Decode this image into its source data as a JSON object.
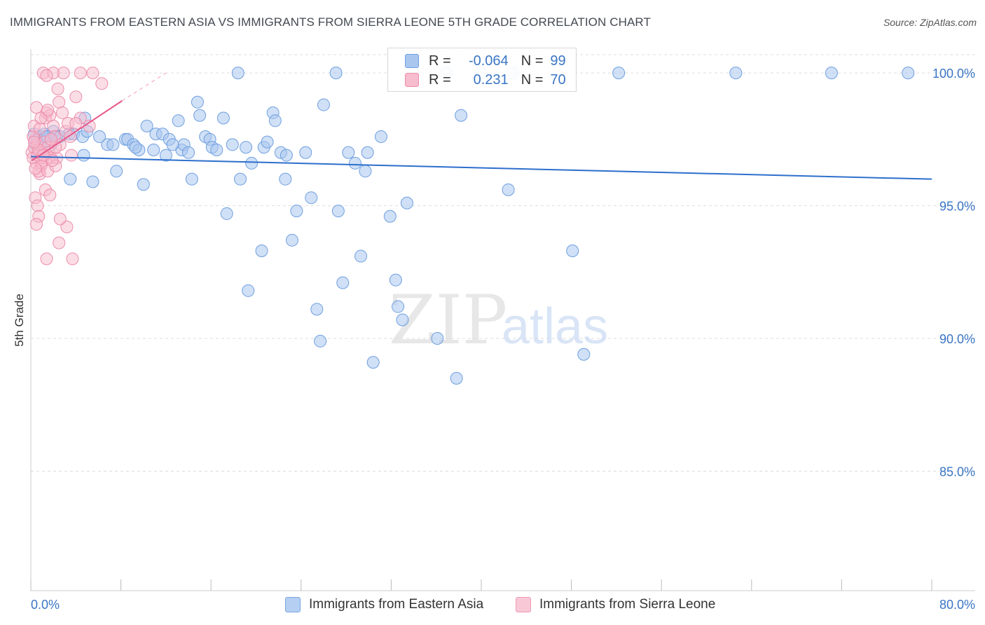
{
  "title": "IMMIGRANTS FROM EASTERN ASIA VS IMMIGRANTS FROM SIERRA LEONE 5TH GRADE CORRELATION CHART",
  "source": "Source: ZipAtlas.com",
  "watermark": {
    "zip": "ZIP",
    "atlas": "atlas"
  },
  "colors": {
    "blue_fill": "#a9c6ef",
    "blue_stroke": "#6f9fe0",
    "blue_line": "#2d6fcc",
    "pink_fill": "#f7bccd",
    "pink_stroke": "#ec8eab",
    "pink_line": "#e8578a",
    "axis_label": "#3a75c4",
    "grid": "#dddddd"
  },
  "legend": {
    "rows": [
      {
        "r_label": "R =",
        "r_value": "-0.064",
        "n_label": "N =",
        "n_value": "99"
      },
      {
        "r_label": "R =",
        "r_value": "0.231",
        "n_label": "N =",
        "n_value": "70"
      }
    ]
  },
  "bottom_legend": {
    "series1": "Immigrants from Eastern Asia",
    "series2": "Immigrants from Sierra Leone"
  },
  "chart_data": {
    "type": "scatter",
    "title": "IMMIGRANTS FROM EASTERN ASIA VS IMMIGRANTS FROM SIERRA LEONE 5TH GRADE CORRELATION CHART",
    "xlabel": "",
    "ylabel": "5th Grade",
    "xlim": [
      0,
      80
    ],
    "ylim": [
      80.5,
      100.9
    ],
    "x_tick_labels": [
      "0.0%",
      "80.0%"
    ],
    "y_ticks": [
      85,
      90,
      95,
      100
    ],
    "y_tick_labels": [
      "85.0%",
      "90.0%",
      "95.0%",
      "100.0%"
    ],
    "grid": true,
    "legend_position": "top-center",
    "series": [
      {
        "name": "Immigrants from Eastern Asia",
        "R": -0.064,
        "N": 99,
        "trend": {
          "x": [
            0,
            80
          ],
          "y": [
            96.85,
            96.0
          ]
        },
        "points": [
          [
            0.3,
            97.7
          ],
          [
            0.6,
            97.5
          ],
          [
            0.8,
            97.6
          ],
          [
            1.2,
            97.7
          ],
          [
            1.5,
            97.6
          ],
          [
            1.8,
            97.3
          ],
          [
            2.0,
            97.8
          ],
          [
            2.3,
            97.6
          ],
          [
            3.4,
            97.7
          ],
          [
            3.8,
            97.7
          ],
          [
            4.8,
            98.3
          ],
          [
            4.6,
            97.6
          ],
          [
            4.7,
            96.9
          ],
          [
            3.5,
            96.0
          ],
          [
            5.5,
            95.9
          ],
          [
            6.8,
            97.3
          ],
          [
            7.3,
            97.3
          ],
          [
            7.6,
            96.3
          ],
          [
            8.4,
            97.5
          ],
          [
            8.6,
            97.5
          ],
          [
            9.1,
            97.3
          ],
          [
            9.6,
            97.1
          ],
          [
            10.0,
            95.8
          ],
          [
            10.3,
            98.0
          ],
          [
            10.9,
            97.1
          ],
          [
            11.1,
            97.7
          ],
          [
            11.7,
            97.7
          ],
          [
            12.0,
            96.9
          ],
          [
            12.3,
            97.5
          ],
          [
            13.1,
            98.2
          ],
          [
            13.4,
            97.1
          ],
          [
            13.6,
            97.3
          ],
          [
            14.0,
            97.0
          ],
          [
            14.3,
            96.0
          ],
          [
            14.8,
            98.9
          ],
          [
            15.0,
            98.4
          ],
          [
            15.5,
            97.6
          ],
          [
            15.9,
            97.5
          ],
          [
            16.1,
            97.2
          ],
          [
            16.5,
            97.1
          ],
          [
            17.1,
            98.3
          ],
          [
            17.4,
            94.7
          ],
          [
            17.9,
            97.3
          ],
          [
            18.6,
            96.0
          ],
          [
            19.1,
            97.2
          ],
          [
            19.3,
            91.8
          ],
          [
            19.6,
            96.6
          ],
          [
            20.5,
            93.3
          ],
          [
            20.7,
            97.2
          ],
          [
            21.0,
            97.4
          ],
          [
            21.5,
            98.5
          ],
          [
            21.7,
            98.2
          ],
          [
            22.2,
            97.0
          ],
          [
            22.6,
            96.0
          ],
          [
            22.7,
            96.9
          ],
          [
            23.2,
            93.7
          ],
          [
            23.6,
            94.8
          ],
          [
            24.4,
            97.0
          ],
          [
            24.9,
            95.3
          ],
          [
            25.4,
            91.1
          ],
          [
            25.7,
            89.9
          ],
          [
            26.0,
            98.8
          ],
          [
            27.3,
            94.8
          ],
          [
            27.7,
            92.1
          ],
          [
            28.2,
            97.0
          ],
          [
            28.8,
            96.6
          ],
          [
            29.3,
            93.1
          ],
          [
            29.7,
            96.3
          ],
          [
            29.9,
            97.0
          ],
          [
            30.4,
            89.1
          ],
          [
            31.1,
            97.6
          ],
          [
            31.9,
            94.6
          ],
          [
            32.4,
            92.2
          ],
          [
            32.6,
            91.2
          ],
          [
            33.0,
            90.7
          ],
          [
            33.4,
            95.1
          ],
          [
            36.1,
            90.0
          ],
          [
            37.8,
            88.5
          ],
          [
            38.2,
            98.4
          ],
          [
            42.4,
            95.6
          ],
          [
            48.1,
            93.3
          ],
          [
            49.1,
            89.4
          ],
          [
            18.4,
            100.0
          ],
          [
            27.1,
            100.0
          ],
          [
            34.0,
            100.0
          ],
          [
            36.9,
            100.0
          ],
          [
            40.0,
            100.0
          ],
          [
            42.8,
            100.0
          ],
          [
            52.2,
            100.0
          ],
          [
            62.6,
            100.0
          ],
          [
            71.1,
            100.0
          ],
          [
            77.9,
            100.0
          ],
          [
            0.4,
            97.3
          ],
          [
            0.9,
            97.2
          ],
          [
            1.3,
            97.6
          ],
          [
            2.6,
            97.6
          ],
          [
            5.0,
            97.8
          ],
          [
            6.1,
            97.6
          ],
          [
            9.3,
            97.2
          ],
          [
            12.6,
            97.3
          ]
        ]
      },
      {
        "name": "Immigrants from Sierra Leone",
        "R": 0.231,
        "N": 70,
        "trend": {
          "x": [
            0.1,
            8.1
          ],
          "y": [
            96.7,
            98.95
          ]
        },
        "trend_extension": {
          "x": [
            8.1,
            12.0
          ],
          "y": [
            98.95,
            100.0
          ]
        },
        "points": [
          [
            0.1,
            97.0
          ],
          [
            0.2,
            96.8
          ],
          [
            0.3,
            97.2
          ],
          [
            0.4,
            97.5
          ],
          [
            0.5,
            96.6
          ],
          [
            0.6,
            97.3
          ],
          [
            0.2,
            97.6
          ],
          [
            0.3,
            98.0
          ],
          [
            0.5,
            98.7
          ],
          [
            0.4,
            95.3
          ],
          [
            0.6,
            95.0
          ],
          [
            0.7,
            94.6
          ],
          [
            0.8,
            96.2
          ],
          [
            0.9,
            96.5
          ],
          [
            1.0,
            97.0
          ],
          [
            1.1,
            96.8
          ],
          [
            1.2,
            97.4
          ],
          [
            1.3,
            98.3
          ],
          [
            1.4,
            98.5
          ],
          [
            1.5,
            97.2
          ],
          [
            1.6,
            96.8
          ],
          [
            0.7,
            96.3
          ],
          [
            1.0,
            96.6
          ],
          [
            1.2,
            96.9
          ],
          [
            1.3,
            95.6
          ],
          [
            1.5,
            96.3
          ],
          [
            1.6,
            97.0
          ],
          [
            1.7,
            98.4
          ],
          [
            1.8,
            96.8
          ],
          [
            2.0,
            98.0
          ],
          [
            2.1,
            97.6
          ],
          [
            2.3,
            96.8
          ],
          [
            2.5,
            98.9
          ],
          [
            2.6,
            97.3
          ],
          [
            2.8,
            98.5
          ],
          [
            3.1,
            97.8
          ],
          [
            3.3,
            98.1
          ],
          [
            3.5,
            97.6
          ],
          [
            3.6,
            96.9
          ],
          [
            4.4,
            98.3
          ],
          [
            5.2,
            98.0
          ],
          [
            6.3,
            99.6
          ],
          [
            1.1,
            100.0
          ],
          [
            2.0,
            100.0
          ],
          [
            2.9,
            100.0
          ],
          [
            4.4,
            100.0
          ],
          [
            5.5,
            100.0
          ],
          [
            1.4,
            93.0
          ],
          [
            3.7,
            93.0
          ],
          [
            2.5,
            93.6
          ],
          [
            3.2,
            94.2
          ],
          [
            2.6,
            94.5
          ],
          [
            0.5,
            94.3
          ],
          [
            2.2,
            96.5
          ],
          [
            0.8,
            97.9
          ],
          [
            1.4,
            99.9
          ],
          [
            2.4,
            99.4
          ],
          [
            4.0,
            99.1
          ],
          [
            0.6,
            96.9
          ],
          [
            0.7,
            97.1
          ],
          [
            1.9,
            96.7
          ],
          [
            0.3,
            97.4
          ],
          [
            1.1,
            96.9
          ],
          [
            0.9,
            98.3
          ],
          [
            2.2,
            97.2
          ],
          [
            1.5,
            98.6
          ],
          [
            4.0,
            98.1
          ],
          [
            0.4,
            96.4
          ],
          [
            1.7,
            95.4
          ],
          [
            1.8,
            97.5
          ]
        ]
      }
    ]
  }
}
